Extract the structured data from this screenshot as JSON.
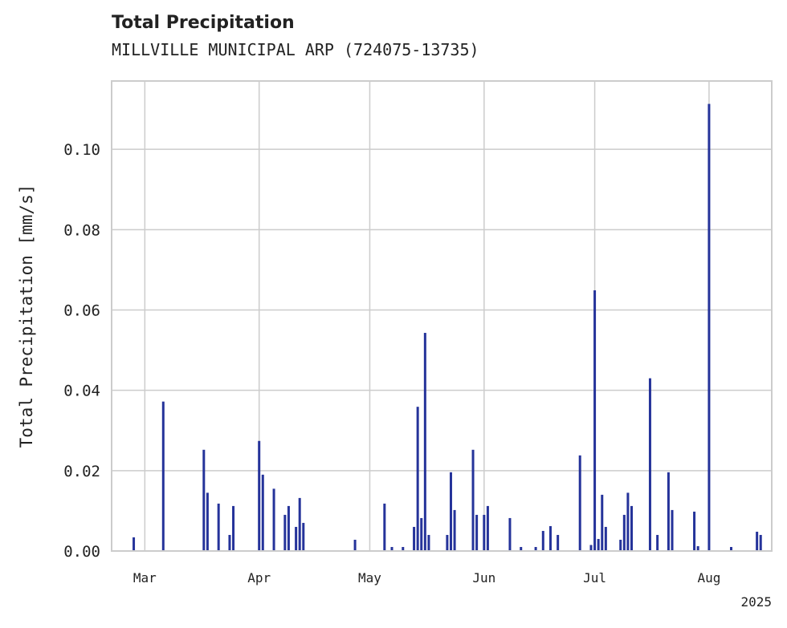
{
  "title": "Total Precipitation",
  "subtitle": "MILLVILLE MUNICIPAL ARP (724075-13735)",
  "chart_data": {
    "type": "bar",
    "title": "Total Precipitation",
    "subtitle": "MILLVILLE MUNICIPAL ARP (724075-13735)",
    "xlabel": "",
    "ylabel": "Total Precipitation [mm/s]",
    "x_axis": "date",
    "xlim": [
      "2025-02-20",
      "2025-08-18"
    ],
    "ylim": [
      0,
      0.117
    ],
    "x_ticks": [
      {
        "date": "2025-03-01",
        "label": "Mar"
      },
      {
        "date": "2025-04-01",
        "label": "Apr"
      },
      {
        "date": "2025-05-01",
        "label": "May"
      },
      {
        "date": "2025-06-01",
        "label": "Jun"
      },
      {
        "date": "2025-07-01",
        "label": "Jul"
      },
      {
        "date": "2025-08-01",
        "label": "Aug"
      }
    ],
    "x_offset_label": "2025",
    "y_ticks": [
      0.0,
      0.02,
      0.04,
      0.06,
      0.08,
      0.1
    ],
    "y_tick_labels": [
      "0.00",
      "0.02",
      "0.04",
      "0.06",
      "0.08",
      "0.10"
    ],
    "grid": true,
    "series": [
      {
        "color": "#25339a",
        "points": [
          [
            "2025-02-26",
            0.0034
          ],
          [
            "2025-03-06",
            0.0372
          ],
          [
            "2025-03-17",
            0.0252
          ],
          [
            "2025-03-18",
            0.0145
          ],
          [
            "2025-03-21",
            0.0118
          ],
          [
            "2025-03-24",
            0.004
          ],
          [
            "2025-03-25",
            0.0112
          ],
          [
            "2025-04-01",
            0.0274
          ],
          [
            "2025-04-02",
            0.019
          ],
          [
            "2025-04-05",
            0.0155
          ],
          [
            "2025-04-08",
            0.009
          ],
          [
            "2025-04-09",
            0.0112
          ],
          [
            "2025-04-11",
            0.006
          ],
          [
            "2025-04-12",
            0.0132
          ],
          [
            "2025-04-13",
            0.007
          ],
          [
            "2025-04-27",
            0.0028
          ],
          [
            "2025-05-05",
            0.0118
          ],
          [
            "2025-05-07",
            0.001
          ],
          [
            "2025-05-10",
            0.001
          ],
          [
            "2025-05-13",
            0.006
          ],
          [
            "2025-05-14",
            0.0359
          ],
          [
            "2025-05-15",
            0.0082
          ],
          [
            "2025-05-16",
            0.0543
          ],
          [
            "2025-05-17",
            0.004
          ],
          [
            "2025-05-22",
            0.004
          ],
          [
            "2025-05-23",
            0.0196
          ],
          [
            "2025-05-24",
            0.0102
          ],
          [
            "2025-05-29",
            0.0252
          ],
          [
            "2025-05-30",
            0.009
          ],
          [
            "2025-06-01",
            0.009
          ],
          [
            "2025-06-02",
            0.0112
          ],
          [
            "2025-06-08",
            0.0082
          ],
          [
            "2025-06-11",
            0.001
          ],
          [
            "2025-06-15",
            0.001
          ],
          [
            "2025-06-17",
            0.005
          ],
          [
            "2025-06-19",
            0.0062
          ],
          [
            "2025-06-21",
            0.004
          ],
          [
            "2025-06-27",
            0.0238
          ],
          [
            "2025-06-30",
            0.0015
          ],
          [
            "2025-07-01",
            0.0649
          ],
          [
            "2025-07-02",
            0.003
          ],
          [
            "2025-07-03",
            0.014
          ],
          [
            "2025-07-04",
            0.006
          ],
          [
            "2025-07-08",
            0.0028
          ],
          [
            "2025-07-09",
            0.009
          ],
          [
            "2025-07-10",
            0.0145
          ],
          [
            "2025-07-11",
            0.0112
          ],
          [
            "2025-07-16",
            0.043
          ],
          [
            "2025-07-18",
            0.004
          ],
          [
            "2025-07-21",
            0.0196
          ],
          [
            "2025-07-22",
            0.0102
          ],
          [
            "2025-07-28",
            0.0098
          ],
          [
            "2025-07-29",
            0.0012
          ],
          [
            "2025-08-01",
            0.1113
          ],
          [
            "2025-08-07",
            0.001
          ],
          [
            "2025-08-14",
            0.0048
          ],
          [
            "2025-08-15",
            0.004
          ]
        ]
      }
    ]
  }
}
